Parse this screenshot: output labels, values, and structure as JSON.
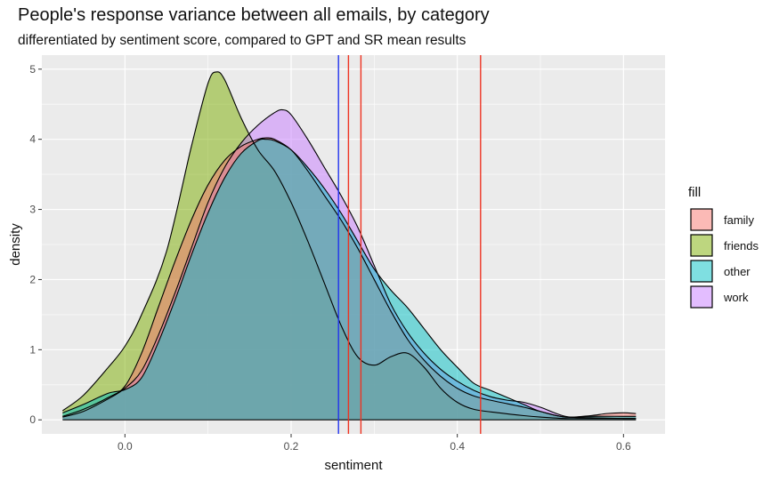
{
  "chart_data": {
    "type": "area",
    "title": "People's response variance between all emails, by category",
    "subtitle": "differentiated by sentiment score, compared to GPT and SR mean results",
    "xlabel": "sentiment",
    "ylabel": "density",
    "xlim": [
      -0.1,
      0.65
    ],
    "ylim": [
      -0.2,
      5.2
    ],
    "x_ticks": [
      0.0,
      0.2,
      0.4,
      0.6
    ],
    "x_tick_labels": [
      "0.0",
      "0.2",
      "0.4",
      "0.6"
    ],
    "y_ticks": [
      0,
      1,
      2,
      3,
      4,
      5
    ],
    "y_tick_labels": [
      "0",
      "1",
      "2",
      "3",
      "4",
      "5"
    ],
    "grid": true,
    "legend": {
      "title": "fill",
      "position": "right",
      "entries": [
        "family",
        "friends",
        "other",
        "work"
      ]
    },
    "series": [
      {
        "name": "friends",
        "color": "#7CAE00",
        "x": [
          -0.075,
          -0.05,
          -0.02,
          0.0,
          0.02,
          0.05,
          0.08,
          0.1,
          0.11,
          0.12,
          0.14,
          0.16,
          0.18,
          0.2,
          0.22,
          0.24,
          0.26,
          0.28,
          0.3,
          0.32,
          0.34,
          0.36,
          0.38,
          0.4,
          0.42,
          0.45,
          0.48,
          0.5,
          0.53,
          0.56,
          0.6,
          0.615
        ],
        "y": [
          0.13,
          0.35,
          0.75,
          1.05,
          1.5,
          2.4,
          3.9,
          4.8,
          4.96,
          4.85,
          4.3,
          3.85,
          3.55,
          3.1,
          2.55,
          1.95,
          1.35,
          0.9,
          0.78,
          0.9,
          0.95,
          0.75,
          0.45,
          0.25,
          0.15,
          0.1,
          0.06,
          0.04,
          0.02,
          0.02,
          0.02,
          0.02
        ]
      },
      {
        "name": "work",
        "color": "#C77CFF",
        "x": [
          -0.075,
          -0.05,
          -0.02,
          0.0,
          0.02,
          0.04,
          0.06,
          0.08,
          0.1,
          0.12,
          0.14,
          0.16,
          0.18,
          0.19,
          0.2,
          0.22,
          0.24,
          0.26,
          0.28,
          0.3,
          0.32,
          0.34,
          0.36,
          0.38,
          0.4,
          0.42,
          0.44,
          0.46,
          0.48,
          0.5,
          0.53,
          0.56,
          0.6,
          0.615
        ],
        "y": [
          0.04,
          0.12,
          0.3,
          0.45,
          0.7,
          1.2,
          1.8,
          2.45,
          3.1,
          3.6,
          3.95,
          4.2,
          4.38,
          4.42,
          4.35,
          4.0,
          3.6,
          3.2,
          2.75,
          2.2,
          1.65,
          1.25,
          0.95,
          0.72,
          0.55,
          0.42,
          0.33,
          0.28,
          0.25,
          0.18,
          0.05,
          0.03,
          0.02,
          0.02
        ]
      },
      {
        "name": "family",
        "color": "#F8766D",
        "x": [
          -0.075,
          -0.05,
          -0.02,
          0.0,
          0.02,
          0.04,
          0.06,
          0.08,
          0.1,
          0.12,
          0.14,
          0.16,
          0.17,
          0.18,
          0.2,
          0.22,
          0.24,
          0.26,
          0.28,
          0.3,
          0.32,
          0.34,
          0.36,
          0.38,
          0.4,
          0.42,
          0.44,
          0.46,
          0.48,
          0.5,
          0.53,
          0.56,
          0.58,
          0.6,
          0.615
        ],
        "y": [
          0.05,
          0.15,
          0.32,
          0.48,
          0.95,
          1.6,
          2.25,
          2.85,
          3.35,
          3.7,
          3.9,
          4.0,
          4.02,
          4.0,
          3.85,
          3.55,
          3.2,
          2.85,
          2.45,
          2.0,
          1.55,
          1.15,
          0.85,
          0.62,
          0.45,
          0.34,
          0.28,
          0.23,
          0.18,
          0.12,
          0.04,
          0.06,
          0.09,
          0.1,
          0.09
        ]
      },
      {
        "name": "other",
        "color": "#00BFC4",
        "x": [
          -0.075,
          -0.05,
          -0.02,
          0.0,
          0.02,
          0.04,
          0.06,
          0.08,
          0.1,
          0.12,
          0.14,
          0.16,
          0.17,
          0.18,
          0.2,
          0.22,
          0.24,
          0.26,
          0.28,
          0.3,
          0.32,
          0.34,
          0.36,
          0.38,
          0.4,
          0.42,
          0.44,
          0.46,
          0.48,
          0.5,
          0.53,
          0.56,
          0.6,
          0.615
        ],
        "y": [
          0.1,
          0.22,
          0.38,
          0.43,
          0.6,
          1.1,
          1.7,
          2.35,
          2.95,
          3.45,
          3.8,
          3.98,
          4.0,
          3.98,
          3.85,
          3.6,
          3.3,
          2.95,
          2.55,
          2.15,
          1.85,
          1.6,
          1.3,
          1.0,
          0.75,
          0.52,
          0.42,
          0.32,
          0.22,
          0.12,
          0.04,
          0.05,
          0.05,
          0.05
        ]
      }
    ],
    "vlines": [
      {
        "x": 0.257,
        "color": "#2233ee"
      },
      {
        "x": 0.269,
        "color": "#ee3322"
      },
      {
        "x": 0.284,
        "color": "#ee3322"
      },
      {
        "x": 0.428,
        "color": "#ee3322"
      }
    ]
  }
}
